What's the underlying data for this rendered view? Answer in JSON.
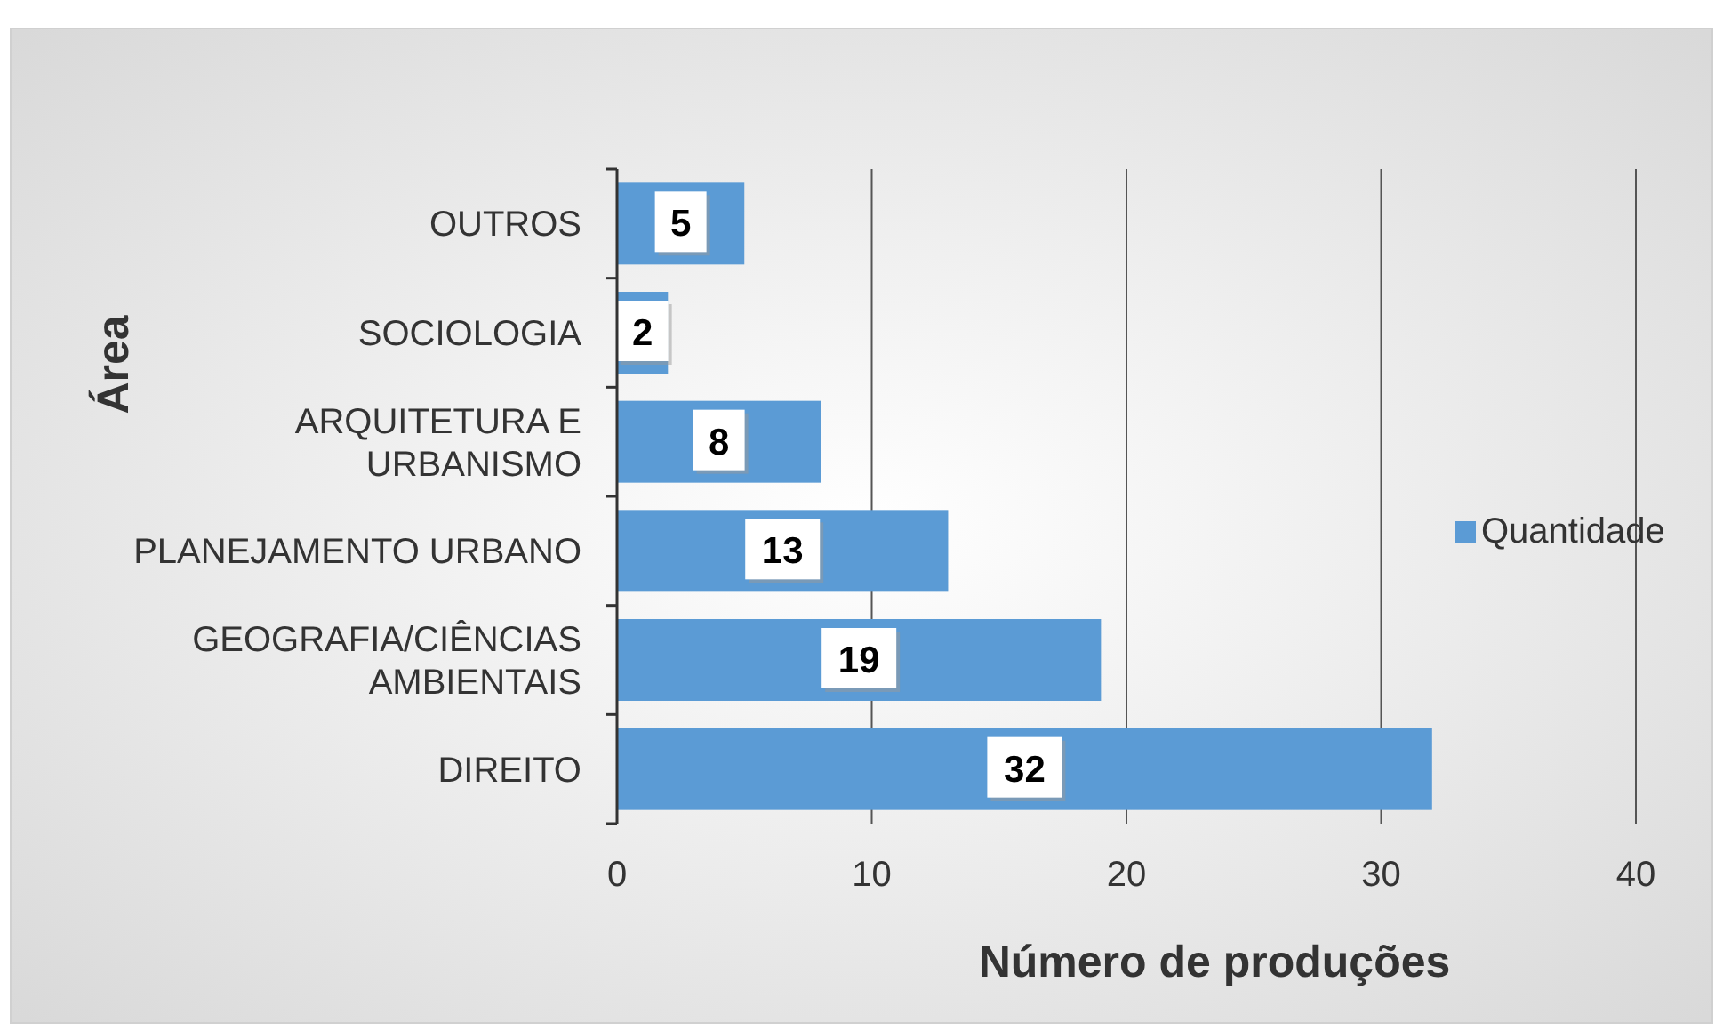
{
  "chart_data": {
    "type": "bar",
    "orientation": "horizontal",
    "ylabel": "Área",
    "xlabel": "Número de produções",
    "categories": [
      "OUTROS",
      "SOCIOLOGIA",
      "ARQUITETURA E URBANISMO",
      "PLANEJAMENTO URBANO",
      "GEOGRAFIA/CIÊNCIAS AMBIENTAIS",
      "DIREITO"
    ],
    "series": [
      {
        "name": "Quantidade",
        "color": "#5b9bd5",
        "values": [
          5,
          2,
          8,
          13,
          19,
          32
        ]
      }
    ],
    "xlim": [
      0,
      40
    ],
    "xticks": [
      0,
      10,
      20,
      30,
      40
    ],
    "grid": "x",
    "legend": "right",
    "data_labels": true
  }
}
